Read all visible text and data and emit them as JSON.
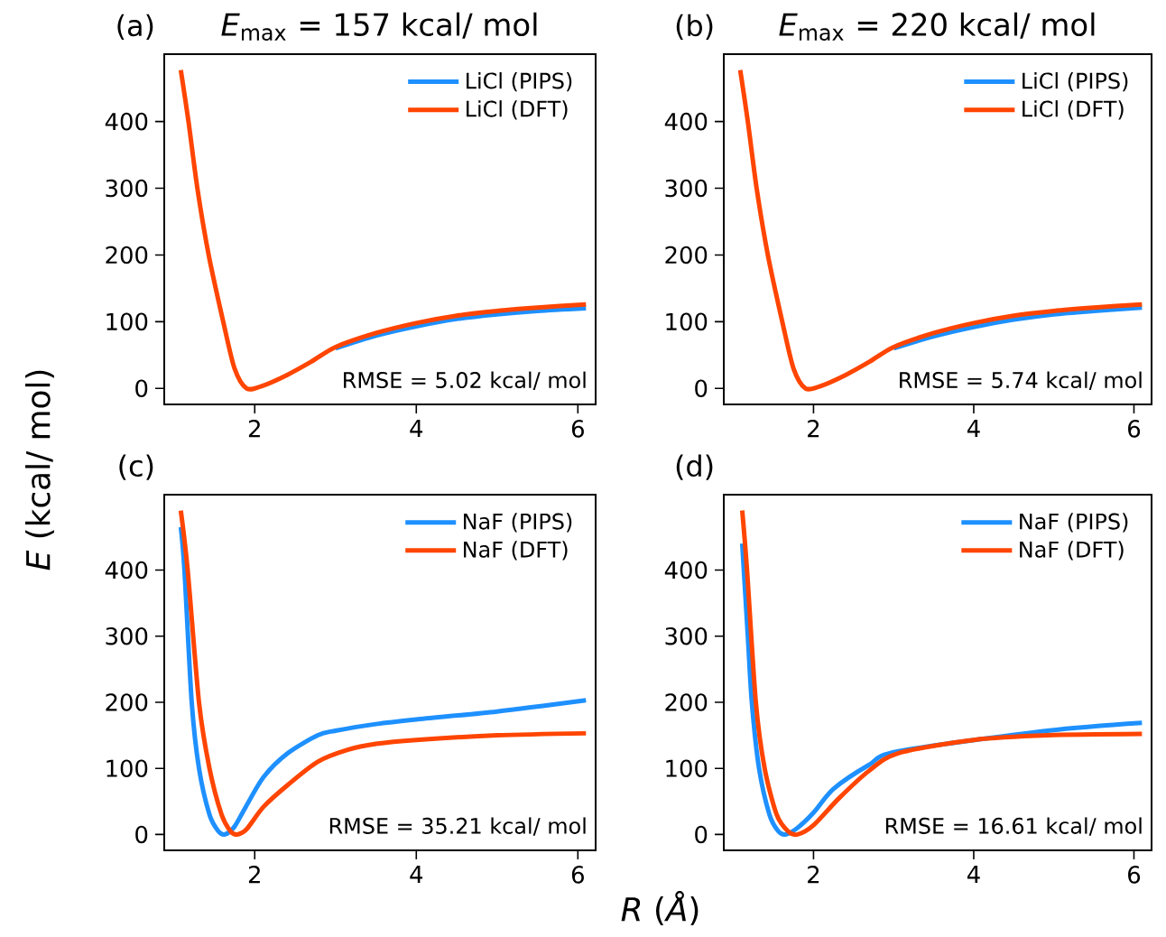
{
  "chart_data": [
    {
      "type": "line",
      "title": "*E*$_{max}$ = 157 kcal/ mol",
      "ylabel": "*E* (kcal/ mol)",
      "annotations": [
        "(a)",
        "RMSE = 5.02 kcal/ mol"
      ],
      "xlim": [
        0.88,
        6.22
      ],
      "ylim": [
        -24,
        501
      ],
      "xticks": [
        2,
        4,
        6
      ],
      "yticks": [
        0,
        100,
        200,
        300,
        400
      ],
      "legend": "top right",
      "series": [
        {
          "name": "LiCl (PIPS)",
          "color": "#1e90ff",
          "x": [
            3.0,
            3.5,
            4.0,
            4.5,
            5.0,
            5.5,
            6.1
          ],
          "values": [
            60,
            79,
            93,
            104,
            111,
            116,
            120
          ]
        },
        {
          "name": "LiCl (DFT)",
          "color": "#ff4500",
          "x": [
            1.085,
            1.18,
            1.29,
            1.43,
            1.61,
            1.75,
            1.9,
            2.1,
            2.4,
            2.7,
            3.0,
            3.5,
            4.0,
            4.5,
            5.0,
            5.5,
            6.1
          ],
          "values": [
            477,
            400,
            300,
            200,
            100,
            30,
            0,
            4,
            20,
            40,
            62,
            83,
            98,
            109,
            116,
            121,
            126
          ]
        }
      ]
    },
    {
      "type": "line",
      "title": "*E*$_{max}$ = 220 kcal/ mol",
      "annotations": [
        "(b)",
        "RMSE = 5.74 kcal/ mol"
      ],
      "xlim": [
        0.88,
        6.22
      ],
      "ylim": [
        -24,
        501
      ],
      "xticks": [
        2,
        4,
        6
      ],
      "yticks": [
        0,
        100,
        200,
        300,
        400
      ],
      "legend": "top right",
      "series": [
        {
          "name": "LiCl (PIPS)",
          "color": "#1e90ff",
          "x": [
            3.0,
            3.5,
            4.0,
            4.5,
            5.0,
            5.5,
            6.1
          ],
          "values": [
            60,
            78,
            92,
            103,
            111,
            116,
            121
          ]
        },
        {
          "name": "LiCl (DFT)",
          "color": "#ff4500",
          "x": [
            1.085,
            1.18,
            1.29,
            1.43,
            1.61,
            1.75,
            1.9,
            2.1,
            2.4,
            2.7,
            3.0,
            3.5,
            4.0,
            4.5,
            5.0,
            5.5,
            6.1
          ],
          "values": [
            477,
            400,
            300,
            200,
            100,
            30,
            0,
            4,
            20,
            40,
            62,
            83,
            98,
            109,
            116,
            121,
            126
          ]
        }
      ]
    },
    {
      "type": "line",
      "xlabel": "*R* (*Å*)",
      "annotations": [
        "(c)",
        "RMSE = 35.21 kcal/ mol"
      ],
      "xlim": [
        0.88,
        6.22
      ],
      "ylim": [
        -24,
        514
      ],
      "xticks": [
        2,
        4,
        6
      ],
      "yticks": [
        0,
        100,
        200,
        300,
        400
      ],
      "legend": "top right",
      "series": [
        {
          "name": "NaF (PIPS)",
          "color": "#1e90ff",
          "x": [
            1.085,
            1.13,
            1.22,
            1.31,
            1.44,
            1.55,
            1.63,
            1.75,
            1.89,
            2.11,
            2.41,
            2.78,
            3.0,
            3.5,
            4.0,
            5.0,
            6.1
          ],
          "values": [
            465,
            400,
            200,
            100,
            30,
            5,
            0,
            12,
            42,
            87,
            123,
            150,
            157,
            167,
            174,
            186,
            203
          ]
        },
        {
          "name": "NaF (DFT)",
          "color": "#ff4500",
          "x": [
            1.085,
            1.17,
            1.31,
            1.44,
            1.59,
            1.7,
            1.78,
            1.9,
            2.11,
            2.41,
            2.78,
            3.15,
            3.5,
            4.0,
            5.0,
            6.1
          ],
          "values": [
            490,
            400,
            200,
            100,
            30,
            5,
            0,
            8,
            42,
            75,
            110,
            128,
            137,
            143,
            150,
            153
          ]
        }
      ]
    },
    {
      "type": "line",
      "annotations": [
        "(d)",
        "RMSE = 16.61 kcal/ mol"
      ],
      "xlim": [
        0.88,
        6.22
      ],
      "ylim": [
        -24,
        514
      ],
      "xticks": [
        2,
        4,
        6
      ],
      "yticks": [
        0,
        100,
        200,
        300,
        400
      ],
      "legend": "top right",
      "series": [
        {
          "name": "NaF (PIPS)",
          "color": "#1e90ff",
          "x": [
            1.11,
            1.18,
            1.23,
            1.32,
            1.45,
            1.56,
            1.65,
            1.8,
            2.0,
            2.25,
            2.69,
            3.06,
            4.92,
            6.1
          ],
          "values": [
            440,
            300,
            200,
            100,
            30,
            5,
            0,
            10,
            33,
            69,
            105,
            126,
            157,
            169
          ]
        },
        {
          "name": "NaF (DFT)",
          "color": "#ff4500",
          "x": [
            1.11,
            1.17,
            1.28,
            1.39,
            1.54,
            1.68,
            1.8,
            2.0,
            2.32,
            2.69,
            3.06,
            4.0,
            4.92,
            6.1
          ],
          "values": [
            490,
            400,
            200,
            100,
            30,
            5,
            0,
            14,
            55,
            96,
            123,
            143,
            150,
            152
          ]
        }
      ]
    }
  ]
}
